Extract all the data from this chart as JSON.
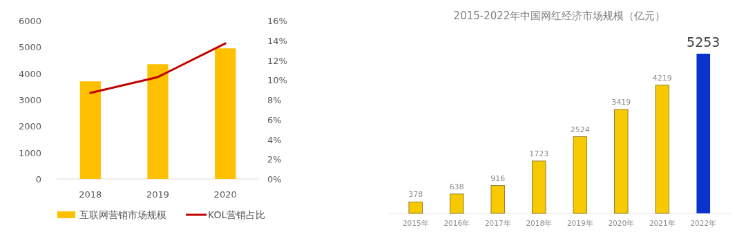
{
  "chart_data": [
    {
      "type": "bar",
      "categories": [
        "2018",
        "2019",
        "2020"
      ],
      "series": [
        {
          "name": "互联网营销市场规模",
          "type": "bar",
          "color": "#ffc000",
          "values": [
            3700,
            4350,
            4950
          ]
        },
        {
          "name": "KOL营销占比",
          "type": "line",
          "axis": "y2",
          "color": "#c00000",
          "values": [
            8.7,
            10.3,
            13.7
          ]
        }
      ],
      "ylim": [
        0,
        6000
      ],
      "yticks": [
        0,
        1000,
        2000,
        3000,
        4000,
        5000,
        6000
      ],
      "y2lim": [
        0,
        16
      ],
      "y2ticks": [
        {
          "value": 0,
          "label": "0%"
        },
        {
          "value": 2,
          "label": "2%"
        },
        {
          "value": 4,
          "label": "4%"
        },
        {
          "value": 6,
          "label": "6%"
        },
        {
          "value": 8,
          "label": "8%"
        },
        {
          "value": 10,
          "label": "10%"
        },
        {
          "value": 12,
          "label": "12%"
        },
        {
          "value": 14,
          "label": "14%"
        },
        {
          "value": 16,
          "label": "16%"
        }
      ],
      "legend": "bottom"
    },
    {
      "type": "bar",
      "title": "2015-2022年中国网红经济市场规模（亿元）",
      "categories": [
        "2015年",
        "2016年",
        "2017年",
        "2018年",
        "2019年",
        "2020年",
        "2021年",
        "2022年"
      ],
      "values": [
        378,
        638,
        916,
        1723,
        2524,
        3419,
        4219,
        5253
      ],
      "colors": [
        "#f7c900",
        "#f7c900",
        "#f7c900",
        "#f7c900",
        "#f7c900",
        "#f7c900",
        "#f7c900",
        "#0a33cc"
      ],
      "data_labels": true
    }
  ]
}
